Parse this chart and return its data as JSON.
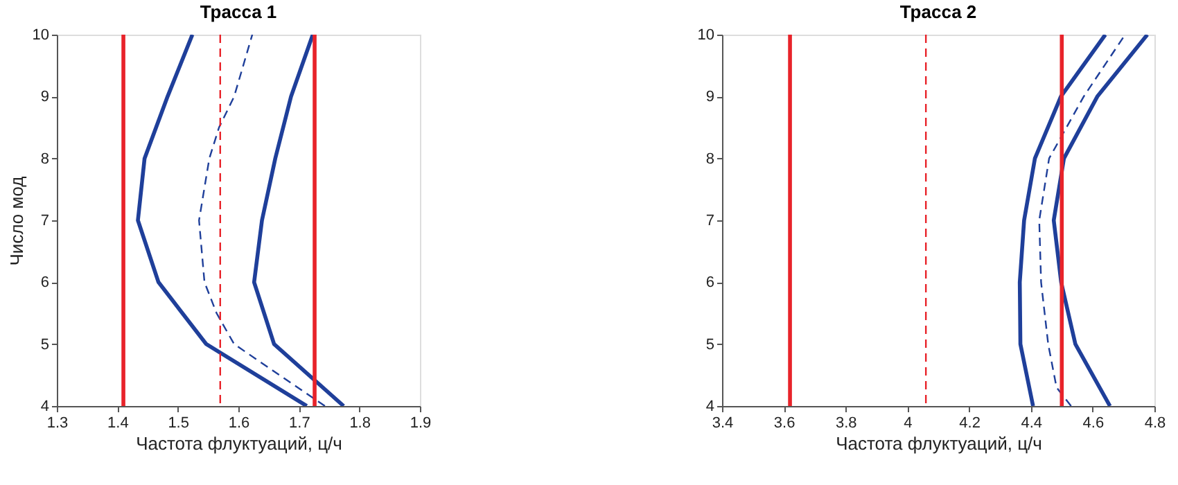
{
  "chart_data": [
    {
      "type": "line",
      "title": "Трасса 1",
      "xlabel": "Частота флуктуаций, ц/ч",
      "ylabel": "Число мод",
      "xlim": [
        1.3,
        1.9
      ],
      "xticks": [
        1.3,
        1.4,
        1.5,
        1.6,
        1.7,
        1.8,
        1.9
      ],
      "ylim": [
        4,
        10
      ],
      "yticks": [
        4,
        5,
        6,
        7,
        8,
        9,
        10
      ],
      "grid": false,
      "series": [
        {
          "color": "#1f3f9a",
          "line_style": "solid",
          "x": [
            1.713,
            1.547,
            1.468,
            1.434,
            1.445,
            1.483,
            1.524
          ],
          "values": [
            4,
            5,
            6,
            7,
            8,
            9,
            10
          ]
        },
        {
          "color": "#1f3f9a",
          "line_style": "dashed",
          "x": [
            1.743,
            1.593,
            1.564,
            1.544,
            1.535,
            1.552,
            1.568,
            1.593,
            1.623
          ],
          "values": [
            4,
            5,
            5.5,
            6,
            7,
            8,
            8.5,
            9,
            10
          ]
        },
        {
          "color": "#1f3f9a",
          "line_style": "solid",
          "x": [
            1.774,
            1.659,
            1.626,
            1.639,
            1.661,
            1.687,
            1.723
          ],
          "values": [
            4,
            5,
            6,
            7,
            8,
            9,
            10
          ]
        }
      ],
      "ref_lines": [
        {
          "axis": "x",
          "value": 1.41,
          "color": "#e8232a",
          "line_style": "solid"
        },
        {
          "axis": "x",
          "value": 1.57,
          "color": "#e8232a",
          "line_style": "dashed"
        },
        {
          "axis": "x",
          "value": 1.726,
          "color": "#e8232a",
          "line_style": "solid"
        }
      ]
    },
    {
      "type": "line",
      "title": "Трасса 2",
      "xlabel": "Частота флуктуаций, ц/ч",
      "xlim": [
        3.4,
        4.8
      ],
      "xticks": [
        3.4,
        3.6,
        3.8,
        4,
        4.2,
        4.4,
        4.6,
        4.8
      ],
      "ylim": [
        4,
        10
      ],
      "yticks": [
        4,
        5,
        6,
        7,
        8,
        9,
        10
      ],
      "grid": false,
      "series": [
        {
          "color": "#1f3f9a",
          "line_style": "solid",
          "x": [
            4.407,
            4.366,
            4.364,
            4.378,
            4.413,
            4.497,
            4.641
          ],
          "values": [
            4,
            5,
            6,
            7,
            8,
            9,
            10
          ]
        },
        {
          "color": "#1f3f9a",
          "line_style": "dashed",
          "x": [
            4.53,
            4.483,
            4.456,
            4.433,
            4.427,
            4.459,
            4.571,
            4.705
          ],
          "values": [
            4,
            4.3,
            5,
            6,
            7,
            8,
            9,
            10
          ]
        },
        {
          "color": "#1f3f9a",
          "line_style": "solid",
          "x": [
            4.656,
            4.544,
            4.498,
            4.474,
            4.507,
            4.615,
            4.777
          ],
          "values": [
            4,
            5,
            6,
            7,
            8,
            9,
            10
          ]
        }
      ],
      "ref_lines": [
        {
          "axis": "x",
          "value": 3.62,
          "color": "#e8232a",
          "line_style": "solid"
        },
        {
          "axis": "x",
          "value": 4.06,
          "color": "#e8232a",
          "line_style": "dashed"
        },
        {
          "axis": "x",
          "value": 4.5,
          "color": "#e8232a",
          "line_style": "solid"
        }
      ]
    }
  ]
}
